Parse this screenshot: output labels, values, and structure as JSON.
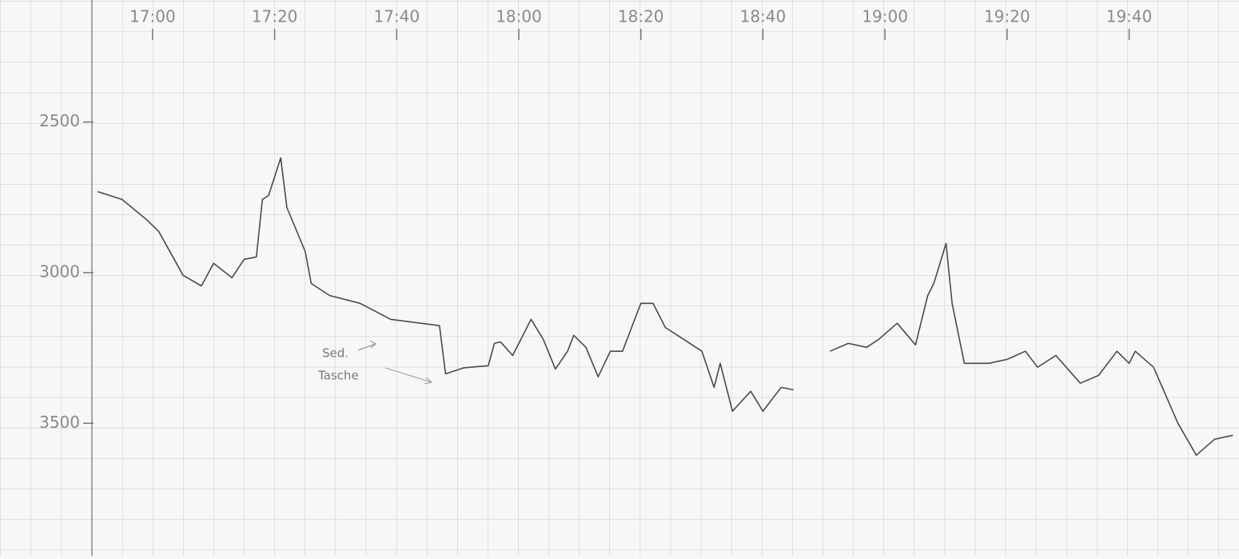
{
  "chart_data": {
    "type": "line",
    "xticks": [
      "17:00",
      "17:20",
      "17:40",
      "18:00",
      "18:20",
      "18:40",
      "19:00",
      "19:20",
      "19:40"
    ],
    "xlim": [
      "16:35",
      "19:58"
    ],
    "ylim": [
      2095,
      3940
    ],
    "y_inverted": true,
    "yticks": [
      2500,
      3000,
      3500
    ],
    "grid": true,
    "annotations": [
      "Sed.",
      "Tasche"
    ],
    "series": [
      {
        "color": "#4a4a4a",
        "x": [
          "16:51",
          "16:55",
          "16:59",
          "17:01",
          "17:05",
          "17:08",
          "17:10",
          "17:13",
          "17:15",
          "17:17",
          "17:18",
          "17:19",
          "17:21",
          "17:22",
          "17:25",
          "17:26",
          "17:29",
          "17:34",
          "17:39",
          "17:47",
          "17:48",
          "17:51",
          "17:55",
          "17:56",
          "17:57",
          "17:59",
          "18:01",
          "18:02",
          "18:04",
          "18:06",
          "18:08",
          "18:09",
          "18:11",
          "18:13",
          "18:15",
          "18:17",
          "18:20",
          "18:22",
          "18:24",
          "18:26",
          "18:30",
          "18:32",
          "18:33",
          "18:35",
          "18:38",
          "18:40",
          "18:43",
          "18:45",
          "18:48",
          "18:51",
          "18:54",
          "18:57",
          "18:59",
          "19:02",
          "19:05",
          "19:07",
          "19:08",
          "19:10",
          "19:11",
          "19:13",
          "19:17",
          "19:20",
          "19:23",
          "19:25",
          "19:28",
          "19:32",
          "19:35",
          "19:38",
          "19:40",
          "19:41",
          "19:44",
          "19:48",
          "19:51",
          "19:54",
          "19:57"
        ],
        "values": [
          2731,
          2757,
          2824,
          2863,
          3009,
          3044,
          2969,
          3017,
          2956,
          2948,
          2757,
          2744,
          2619,
          2784,
          2930,
          3036,
          3076,
          3102,
          3155,
          3176,
          3336,
          3316,
          3309,
          3235,
          3230,
          3275,
          3195,
          3155,
          3221,
          3320,
          3261,
          3208,
          3248,
          3346,
          3261,
          3261,
          3102,
          3102,
          3182,
          3208,
          3261,
          3381,
          3301,
          3460,
          3394,
          3460,
          3381,
          3389,
          null,
          3261,
          3235,
          3248,
          3221,
          3168,
          3240,
          3076,
          3036,
          2903,
          3102,
          3301,
          3301,
          3288,
          3261,
          3314,
          3275,
          3367,
          3341,
          3261,
          3301,
          3261,
          3314,
          3500,
          3606,
          3553,
          3540
        ]
      }
    ]
  }
}
